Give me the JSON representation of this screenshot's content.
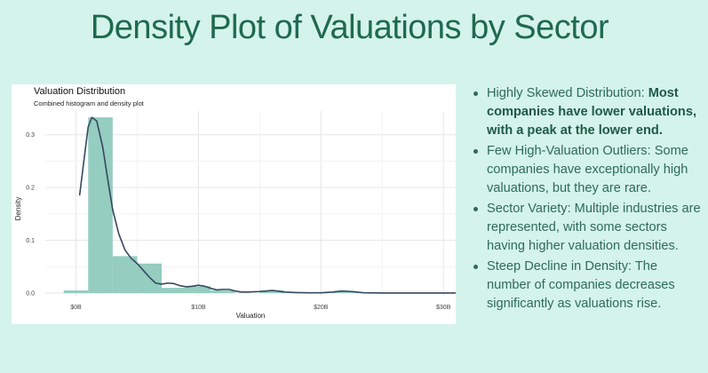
{
  "slide": {
    "title": "Density Plot of Valuations by Sector"
  },
  "colors": {
    "background": "#d4f3ea",
    "title": "#1f6a4f",
    "bar_fill": "#8fcabd",
    "density_line": "#35495e",
    "bullet_text": "#2e6b58"
  },
  "bullets": [
    {
      "lead": "Highly Skewed Distribution: ",
      "bold": "Most companies have lower valuations, with a peak at the lower end.",
      "rest": ""
    },
    {
      "lead": "Few High-Valuation Outliers: Some companies have exceptionally high valuations, but they are rare.",
      "bold": "",
      "rest": ""
    },
    {
      "lead": "Sector Variety: Multiple industries are represented, with some sectors having higher valuation densities.",
      "bold": "",
      "rest": ""
    },
    {
      "lead": "Steep Decline in Density: The number of companies decreases significantly as valuations rise.",
      "bold": "",
      "rest": ""
    }
  ],
  "chart_data": {
    "type": "area",
    "title": "Valuation Distribution",
    "subtitle": "Combined histogram and density plot",
    "xlabel": "Valuation",
    "ylabel": "Density",
    "xlim": [
      -2.5,
      31
    ],
    "ylim": [
      -0.005,
      0.345
    ],
    "x_ticks": [
      {
        "value": 0,
        "label": "$0B"
      },
      {
        "value": 10,
        "label": "$10B"
      },
      {
        "value": 20,
        "label": "$20B"
      },
      {
        "value": 30,
        "label": "$30B"
      }
    ],
    "y_ticks": [
      {
        "value": 0.0,
        "label": "0.0"
      },
      {
        "value": 0.1,
        "label": "0.1"
      },
      {
        "value": 0.2,
        "label": "0.2"
      },
      {
        "value": 0.3,
        "label": "0.3"
      }
    ],
    "grid": true,
    "histogram": {
      "bins": [
        {
          "x0": -1,
          "x1": 1,
          "density": 0.005
        },
        {
          "x0": 1,
          "x1": 3,
          "density": 0.333
        },
        {
          "x0": 3,
          "x1": 5,
          "density": 0.07
        },
        {
          "x0": 5,
          "x1": 7,
          "density": 0.056
        },
        {
          "x0": 7,
          "x1": 9,
          "density": 0.01
        },
        {
          "x0": 9,
          "x1": 11,
          "density": 0.013
        },
        {
          "x0": 11,
          "x1": 13,
          "density": 0.005
        },
        {
          "x0": 15,
          "x1": 17,
          "density": 0.005
        },
        {
          "x0": 21,
          "x1": 23,
          "density": 0.004
        }
      ]
    },
    "density": {
      "x": [
        0.3,
        0.7,
        1.0,
        1.3,
        1.7,
        2.2,
        2.6,
        3.0,
        3.5,
        4.0,
        4.5,
        5.0,
        5.5,
        6.0,
        6.5,
        7.0,
        7.5,
        8.0,
        8.5,
        9.0,
        9.5,
        10.0,
        10.5,
        11.0,
        11.5,
        12.0,
        12.5,
        13.0,
        13.5,
        14.0,
        15.0,
        16.0,
        16.5,
        17.0,
        18.0,
        19.0,
        20.0,
        21.0,
        21.7,
        22.5,
        23.5,
        25.0,
        27.0,
        29.0,
        31.0
      ],
      "y": [
        0.185,
        0.26,
        0.315,
        0.333,
        0.326,
        0.275,
        0.215,
        0.158,
        0.112,
        0.082,
        0.066,
        0.056,
        0.043,
        0.03,
        0.019,
        0.017,
        0.019,
        0.018,
        0.014,
        0.012,
        0.013,
        0.015,
        0.013,
        0.009,
        0.006,
        0.007,
        0.007,
        0.004,
        0.002,
        0.002,
        0.003,
        0.005,
        0.004,
        0.002,
        0.001,
        0.0005,
        0.0005,
        0.002,
        0.004,
        0.003,
        0.0005,
        0.0002,
        0.0001,
        0.0001,
        0.0001
      ]
    }
  }
}
